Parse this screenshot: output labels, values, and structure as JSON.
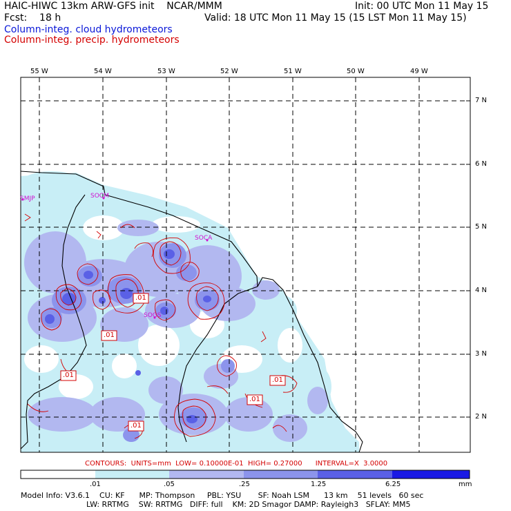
{
  "header": {
    "line1_left": "HAIC-HIWC 13km ARW-GFS init    NCAR/MMM",
    "line1_right": "Init: 00 UTC Mon 11 May 15",
    "line2_left": "Fcst:    18 h",
    "line2_right": "Valid: 18 UTC Mon 11 May 15 (15 LST Mon 11 May 15)",
    "legend_cloud": "Column-integ. cloud hydrometeors",
    "legend_precip": "Column-integ. precip. hydrometeors"
  },
  "map": {
    "lon_labels": [
      "55 W",
      "54 W",
      "53 W",
      "52 W",
      "51 W",
      "50 W",
      "49 W"
    ],
    "lat_labels": [
      "7 N",
      "6 N",
      "5 N",
      "4 N",
      "3 N",
      "2 N"
    ],
    "stations": [
      "SMJP",
      "SOCM",
      "SOCA",
      "SOGS"
    ],
    "contour_labels": [
      ".01",
      ".01",
      ".01",
      ".01",
      ".01",
      ".01"
    ]
  },
  "contours_line": "CONTOURS:  UNITS=mm  LOW= 0.10000E-01  HIGH= 0.27000      INTERVAL=X  3.0000",
  "colorbar": {
    "labels": [
      ".01",
      ".05",
      ".25",
      "1.25",
      "6.25"
    ],
    "unit": "mm",
    "colors": [
      "#ffffff",
      "#c8eef6",
      "#b2b8f0",
      "#8c94ec",
      "#5a60e6",
      "#1a1ae4"
    ]
  },
  "model_info": {
    "line1": "Model Info: V3.6.1    CU: KF      MP: Thompson     PBL: YSU       SF: Noah LSM      13 km    51 levels   60 sec",
    "line2": "LW: RRTMG    SW: RRTMG   DIFF: full    KM: 2D Smagor DAMP: Rayleigh3   SFLAY: MM5"
  }
}
